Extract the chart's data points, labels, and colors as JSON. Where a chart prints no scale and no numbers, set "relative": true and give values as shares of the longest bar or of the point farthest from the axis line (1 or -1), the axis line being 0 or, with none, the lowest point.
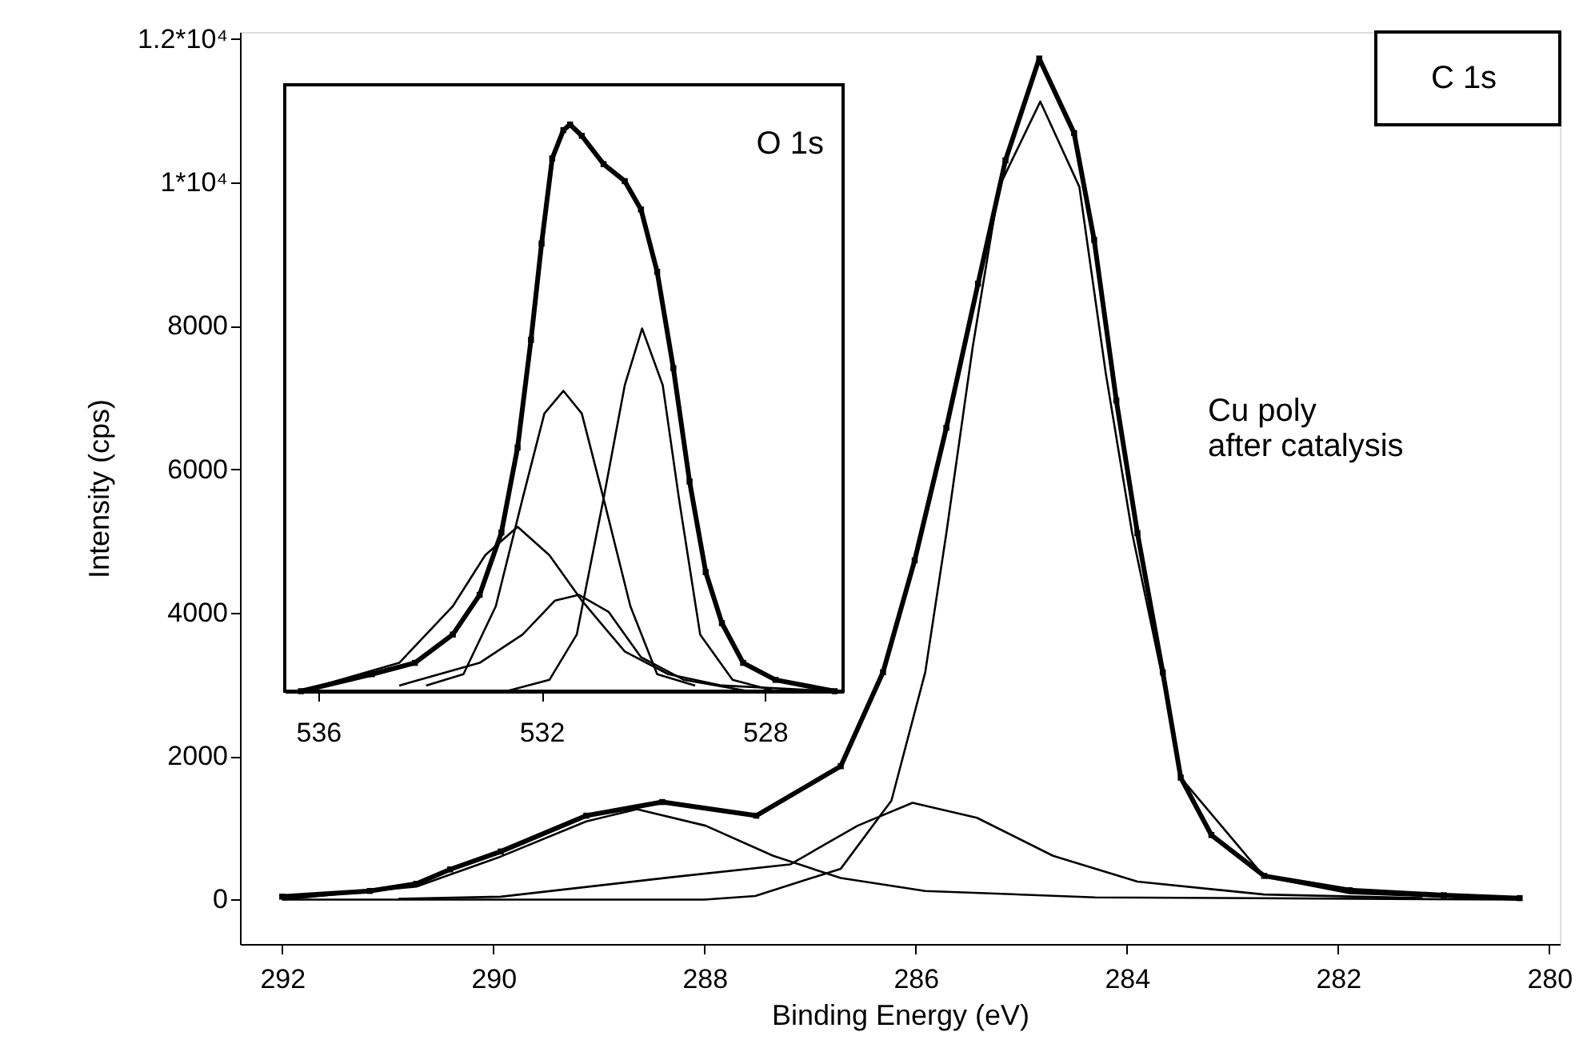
{
  "chart_data": [
    {
      "type": "line",
      "xlabel": "Binding Energy (eV)",
      "ylabel": "Intensity (cps)",
      "annotations": [
        "C 1s",
        "Cu poly\nafter catalysis"
      ],
      "xlim": [
        292.4,
        279.9
      ],
      "xticks": [
        292,
        290,
        288,
        286,
        284,
        282,
        280
      ],
      "ylim": [
        -620,
        12100
      ],
      "yticks": [
        0,
        2000,
        4000,
        6000,
        8000,
        {
          "value": 10000,
          "label": "1*10⁴"
        },
        {
          "value": 12000,
          "label": "1.2*10⁴"
        }
      ],
      "series": [
        {
          "color": "#000000",
          "marker": "square",
          "x": [
            292.0,
            291.17,
            290.73,
            290.41,
            289.93,
            289.12,
            288.4,
            287.51,
            286.71,
            286.31,
            286.01,
            285.71,
            285.41,
            285.15,
            284.83,
            284.5,
            284.31,
            284.1,
            283.9,
            283.66,
            283.49,
            283.2,
            282.7,
            281.89,
            281.0,
            280.28
          ],
          "values": [
            40,
            120,
            220,
            420,
            670,
            1170,
            1360,
            1170,
            1860,
            3170,
            4730,
            6580,
            8590,
            10310,
            11730,
            10690,
            9200,
            6960,
            5110,
            3170,
            1700,
            900,
            330,
            130,
            60,
            20
          ]
        },
        {
          "color": "#000000",
          "marker": "none",
          "x": [
            292.0,
            290.73,
            289.93,
            289.12,
            288.64,
            287.99,
            287.35,
            286.71,
            285.91,
            284.3,
            280.3
          ],
          "values": [
            0,
            180,
            600,
            1090,
            1260,
            1030,
            610,
            300,
            120,
            30,
            0
          ]
        },
        {
          "color": "#000000",
          "marker": "none",
          "x": [
            290.9,
            289.93,
            288.32,
            287.19,
            286.55,
            286.03,
            285.42,
            284.7,
            283.9,
            282.7,
            281.2
          ],
          "values": [
            10,
            40,
            310,
            490,
            1030,
            1350,
            1140,
            610,
            250,
            70,
            20
          ]
        },
        {
          "color": "#000000",
          "marker": "none",
          "x": [
            292.0,
            288.0,
            287.52,
            286.71,
            286.23,
            285.91,
            285.71,
            285.46,
            285.21,
            284.82,
            284.45,
            284.2,
            283.95,
            283.6,
            283.49,
            282.7,
            281.89,
            280.3
          ],
          "values": [
            0,
            0,
            50,
            430,
            1380,
            3170,
            5110,
            7710,
            9940,
            11130,
            9940,
            7340,
            5110,
            2650,
            1700,
            320,
            90,
            0
          ]
        }
      ]
    },
    {
      "type": "line",
      "relative": true,
      "tick_labels": "x",
      "annotations": [
        "O 1s"
      ],
      "xlim": [
        536.6,
        526.6
      ],
      "xticks": [
        536,
        532,
        528
      ],
      "series": [
        {
          "color": "#000000",
          "marker": "square",
          "x": [
            536.31,
            535.04,
            534.27,
            533.59,
            533.11,
            532.72,
            532.43,
            532.19,
            532.0,
            531.81,
            531.61,
            531.49,
            531.28,
            530.89,
            530.51,
            530.22,
            529.93,
            529.64,
            529.35,
            529.06,
            528.77,
            528.39,
            527.81,
            526.75
          ],
          "values": [
            0.0,
            0.03,
            0.05,
            0.1,
            0.17,
            0.28,
            0.43,
            0.62,
            0.79,
            0.94,
            0.99,
            1.0,
            0.98,
            0.93,
            0.9,
            0.85,
            0.74,
            0.57,
            0.37,
            0.21,
            0.12,
            0.05,
            0.02,
            0.0
          ]
        },
        {
          "color": "#000000",
          "marker": "none",
          "x": [
            536.31,
            534.55,
            533.59,
            533.01,
            532.43,
            531.86,
            531.28,
            530.51,
            529.73,
            528.77,
            526.75
          ],
          "values": [
            0.0,
            0.05,
            0.15,
            0.24,
            0.29,
            0.24,
            0.16,
            0.07,
            0.03,
            0.01,
            0.0
          ]
        },
        {
          "color": "#000000",
          "marker": "none",
          "x": [
            534.07,
            533.4,
            532.82,
            532.34,
            531.95,
            531.61,
            531.28,
            530.89,
            530.41,
            529.93,
            529.25
          ],
          "values": [
            0.01,
            0.03,
            0.15,
            0.34,
            0.49,
            0.53,
            0.49,
            0.34,
            0.15,
            0.03,
            0.01
          ]
        },
        {
          "color": "#000000",
          "marker": "none",
          "x": [
            534.55,
            533.11,
            532.34,
            531.76,
            531.33,
            530.8,
            530.22,
            529.45,
            528.29
          ],
          "values": [
            0.01,
            0.05,
            0.1,
            0.16,
            0.17,
            0.14,
            0.06,
            0.02,
            0.0
          ]
        },
        {
          "color": "#000000",
          "marker": "none",
          "x": [
            532.63,
            531.86,
            531.37,
            530.89,
            530.51,
            530.2,
            529.83,
            529.54,
            529.16,
            528.58,
            527.81
          ],
          "values": [
            0.0,
            0.02,
            0.1,
            0.34,
            0.54,
            0.64,
            0.54,
            0.34,
            0.1,
            0.02,
            0.0
          ]
        }
      ]
    }
  ]
}
